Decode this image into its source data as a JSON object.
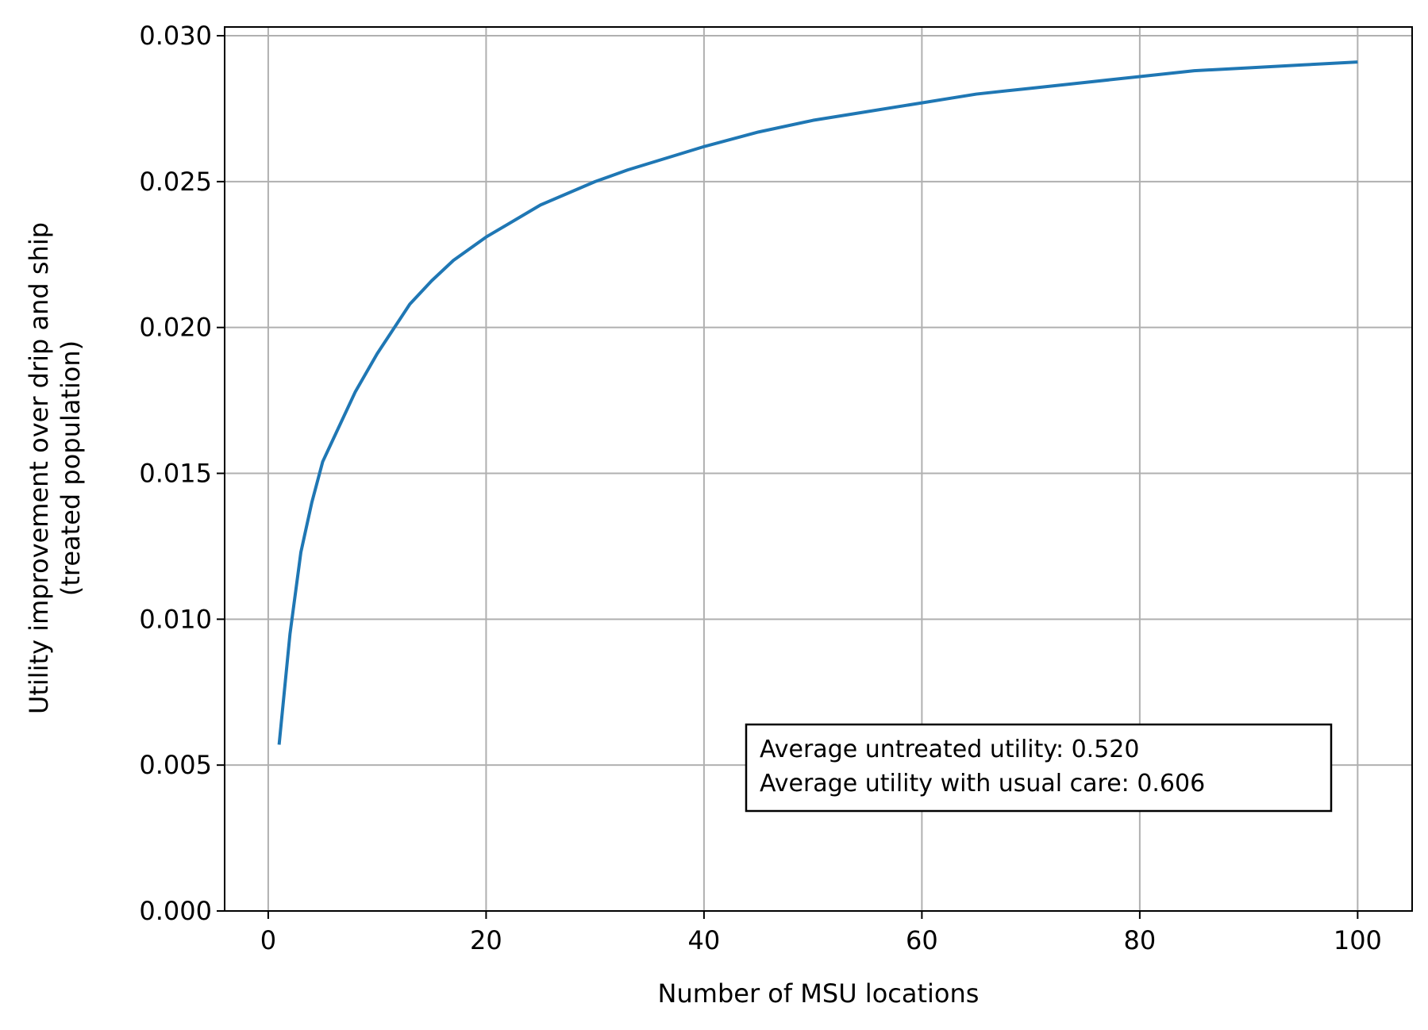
{
  "chart_data": {
    "type": "line",
    "title": "",
    "xlabel": "Number of MSU locations",
    "ylabel_lines": [
      "Utility improvement over drip and ship",
      "(treated population)"
    ],
    "xlim": [
      -4,
      105
    ],
    "ylim": [
      0,
      0.0303
    ],
    "x_ticks": [
      0,
      20,
      40,
      60,
      80,
      100
    ],
    "x_tick_labels": [
      "0",
      "20",
      "40",
      "60",
      "80",
      "100"
    ],
    "y_ticks": [
      0,
      0.005,
      0.01,
      0.015,
      0.02,
      0.025,
      0.03
    ],
    "y_tick_labels": [
      "0.000",
      "0.005",
      "0.010",
      "0.015",
      "0.020",
      "0.025",
      "0.030"
    ],
    "grid": true,
    "annotation": {
      "lines": [
        "Average untreated utility: 0.520",
        "Average utility with usual care: 0.606"
      ],
      "placement": "lower-right"
    },
    "series": [
      {
        "color": "#1f77b4",
        "x": [
          1,
          2,
          3,
          4,
          5,
          6,
          8,
          10,
          13,
          15,
          17,
          20,
          25,
          30,
          33,
          40,
          45,
          50,
          55,
          60,
          65,
          70,
          75,
          80,
          85,
          90,
          95,
          100
        ],
        "y": [
          0.0057,
          0.0095,
          0.0123,
          0.014,
          0.0154,
          0.0162,
          0.0178,
          0.0191,
          0.0208,
          0.0216,
          0.0223,
          0.0231,
          0.0242,
          0.025,
          0.0254,
          0.0262,
          0.0267,
          0.0271,
          0.0274,
          0.0277,
          0.028,
          0.0282,
          0.0284,
          0.0286,
          0.0288,
          0.0289,
          0.029,
          0.0291
        ]
      }
    ]
  }
}
